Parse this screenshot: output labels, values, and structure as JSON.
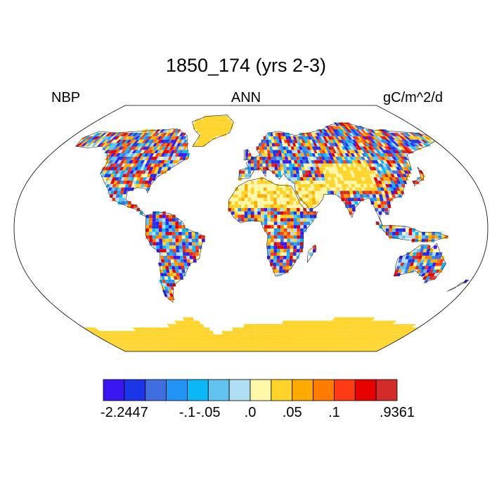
{
  "plot": {
    "title": "1850_174 (yrs 2-3)",
    "left_label": "NBP",
    "center_label": "ANN",
    "right_label": "gC/m^2/d"
  },
  "projection": "robinson",
  "field_pattern": "mixed-positive-negative-land-values",
  "colorbar": {
    "colors": [
      "#3a17f0",
      "#1a36e8",
      "#3e6ee0",
      "#2194f5",
      "#0cb7f7",
      "#62c3f1",
      "#b0dff5",
      "#fff7a8",
      "#ffd42a",
      "#ffaa00",
      "#ff7c00",
      "#ff3b14",
      "#e60000",
      "#d32a2a"
    ],
    "tick_labels": [
      "-2.2447",
      "-.1",
      "-.05",
      ".0",
      ".05",
      ".1",
      ".9361"
    ],
    "tick_boundary_index": [
      1,
      4,
      5,
      7,
      9,
      11,
      14
    ]
  }
}
